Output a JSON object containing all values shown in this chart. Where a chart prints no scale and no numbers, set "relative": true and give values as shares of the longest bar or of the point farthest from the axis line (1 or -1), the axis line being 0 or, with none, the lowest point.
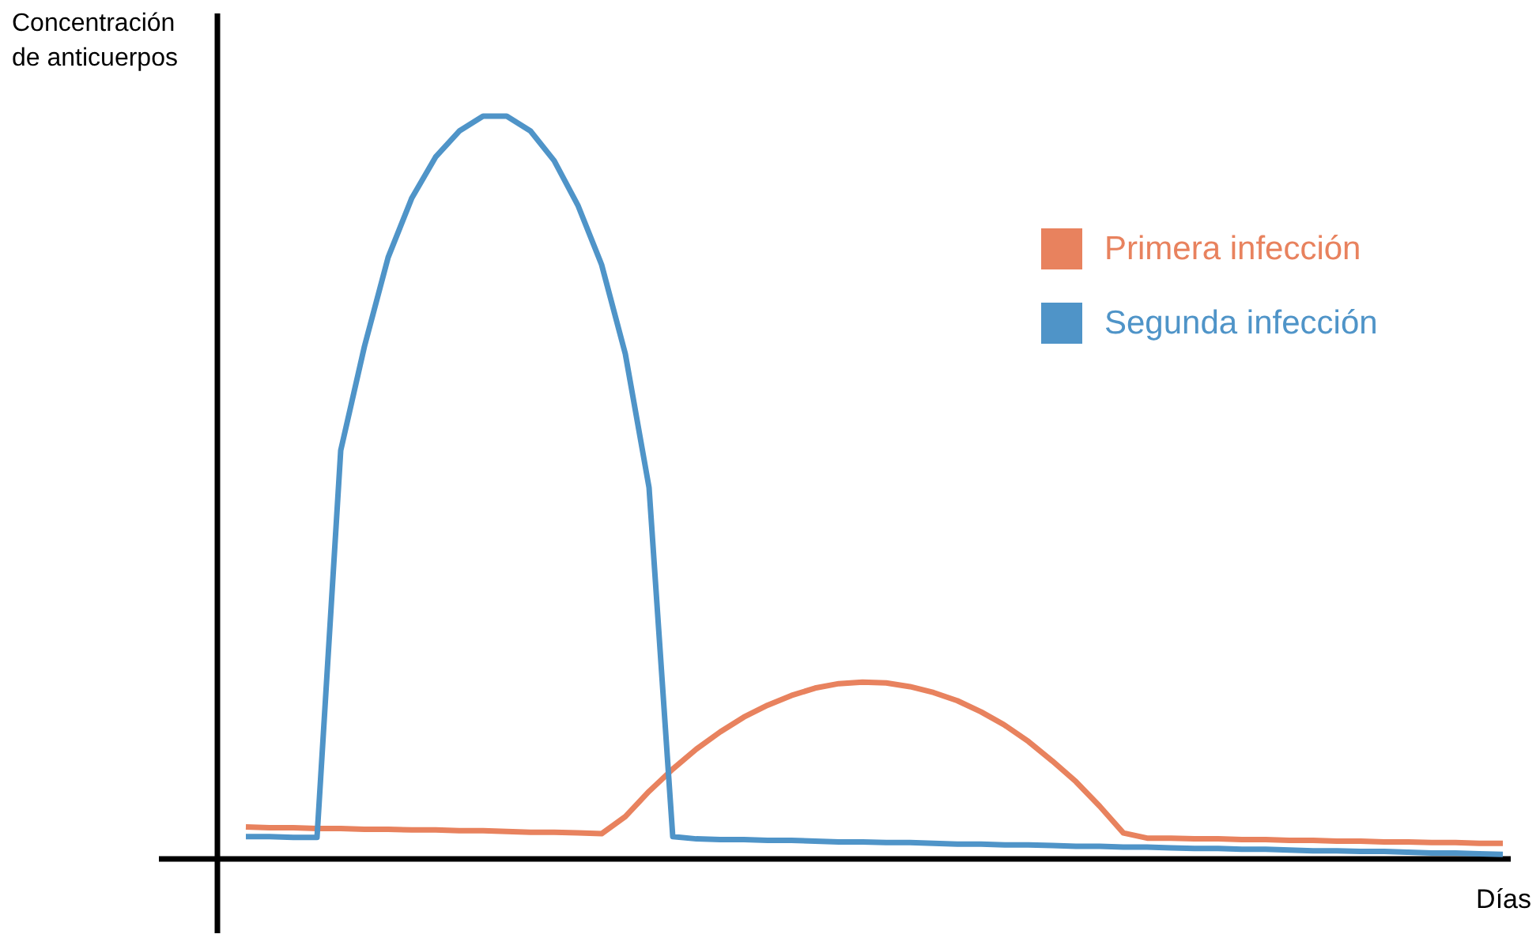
{
  "chart_data": {
    "type": "line",
    "relative": true,
    "xlabel": "Días",
    "ylabel": "Concentración\nde anticuerpos",
    "legend": "top right",
    "marker": "none",
    "line_style": "solid",
    "categories": [
      null,
      null,
      null,
      null,
      null,
      null,
      null,
      null,
      null,
      null,
      null,
      null,
      null,
      null,
      null,
      null,
      null,
      null,
      null,
      null,
      null,
      null,
      null,
      null,
      null,
      null,
      null,
      null,
      null,
      null,
      null,
      null,
      null,
      null,
      null,
      null,
      null,
      null,
      null,
      null,
      null,
      null,
      null,
      null,
      null,
      null,
      null,
      null,
      null,
      null,
      null,
      null,
      null,
      null
    ],
    "series": [
      {
        "name": "Primera infección",
        "color": "#e8825e",
        "values": [
          0.043,
          0.042,
          0.042,
          0.041,
          0.041,
          0.04,
          0.04,
          0.039,
          0.039,
          0.038,
          0.038,
          0.037,
          0.036,
          0.036,
          0.035,
          0.034,
          0.057,
          0.091,
          0.121,
          0.148,
          0.171,
          0.191,
          0.207,
          0.22,
          0.23,
          0.236,
          0.238,
          0.237,
          0.232,
          0.224,
          0.213,
          0.198,
          0.18,
          0.158,
          0.132,
          0.104,
          0.071,
          0.035,
          0.028,
          0.028,
          0.027,
          0.027,
          0.026,
          0.026,
          0.025,
          0.025,
          0.024,
          0.024,
          0.023,
          0.023,
          0.022,
          0.022,
          0.021,
          0.021
        ]
      },
      {
        "name": "Segunda infección",
        "color": "#4f94c8",
        "values": [
          0.03,
          0.03,
          0.029,
          0.029,
          0.55,
          0.69,
          0.81,
          0.89,
          0.945,
          0.98,
          1.0,
          1.0,
          0.98,
          0.94,
          0.88,
          0.8,
          0.68,
          0.5,
          0.03,
          0.027,
          0.026,
          0.026,
          0.025,
          0.025,
          0.024,
          0.023,
          0.023,
          0.022,
          0.022,
          0.021,
          0.02,
          0.02,
          0.019,
          0.019,
          0.018,
          0.017,
          0.017,
          0.016,
          0.016,
          0.015,
          0.014,
          0.014,
          0.013,
          0.013,
          0.012,
          0.011,
          0.011,
          0.01,
          0.01,
          0.009,
          0.008,
          0.008,
          0.007,
          0.006
        ]
      }
    ]
  }
}
